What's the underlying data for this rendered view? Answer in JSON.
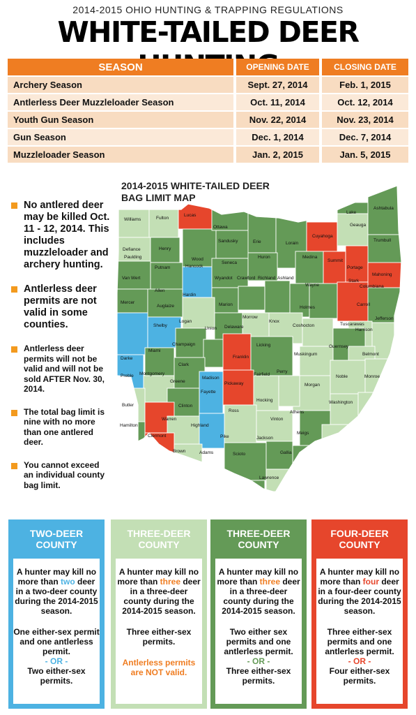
{
  "header": {
    "supertitle": "2014-2015 OHIO HUNTING & TRAPPING REGULATIONS",
    "title": "WHITE-TAILED DEER HUNTING"
  },
  "seasons_table": {
    "headers": [
      "SEASON",
      "OPENING DATE",
      "CLOSING DATE"
    ],
    "rows": [
      {
        "season": "Archery Season",
        "open": "Sept. 27, 2014",
        "close": "Feb. 1, 2015"
      },
      {
        "season": "Antlerless Deer Muzzleloader Season",
        "open": "Oct. 11, 2014",
        "close": "Oct. 12, 2014"
      },
      {
        "season": "Youth Gun Season",
        "open": "Nov. 22, 2014",
        "close": "Nov. 23, 2014"
      },
      {
        "season": "Gun Season",
        "open": "Dec. 1, 2014",
        "close": "Dec. 7, 2014"
      },
      {
        "season": "Muzzleloader Season",
        "open": "Jan. 2, 2015",
        "close": "Jan. 5, 2015"
      }
    ],
    "colors": {
      "header": "#ef7d22",
      "row_a": "#f8dcc1",
      "row_b": "#fbe9d8"
    }
  },
  "notes": [
    "No antlered deer may be killed Oct. 11 - 12, 2014. This includes muzzleloader and archery hunting.",
    "Antlerless deer permits are not valid in some counties.",
    "Antlerless deer permits will not be valid and will not be sold AFTER Nov. 30, 2014.",
    "The total bag limit is nine with no more than one antlered deer.",
    "You cannot exceed an individual county bag limit."
  ],
  "map": {
    "title_line1": "2014-2015  WHITE-TAILED DEER",
    "title_line2": "BAG LIMIT MAP",
    "colors": {
      "two": "#4db2e2",
      "three_light": "#c3dfb5",
      "three_dark": "#649a57",
      "four": "#e6462c"
    },
    "counties": {
      "williams": "Williams",
      "fulton": "Fulton",
      "lucas": "Lucas",
      "defiance": "Defiance",
      "henry": "Henry",
      "wood": "Wood",
      "ottawa": "Ottawa",
      "sandusky": "Sandusky",
      "erie": "Erie",
      "lorain": "Lorain",
      "cuyahoga": "Cuyahoga",
      "lake": "Lake",
      "geauga": "Geauga",
      "ashtabula": "Ashtabula",
      "trumbull": "Trumbull",
      "paulding": "Paulding",
      "putnam": "Putnam",
      "hancock": "Hancock",
      "seneca": "Seneca",
      "huron": "Huron",
      "medina": "Medina",
      "summit": "Summit",
      "portage": "Portage",
      "mahoning": "Mahoning",
      "van_wert": "Van Wert",
      "allen": "Allen",
      "wyandot": "Wyandot",
      "crawford": "Crawford",
      "richland": "Richland",
      "ashland": "Ashland",
      "wayne": "Wayne",
      "stark": "Stark",
      "columbiana": "Columbiana",
      "mercer": "Mercer",
      "auglaize": "Auglaize",
      "hardin": "Hardin",
      "marion": "Marion",
      "morrow": "Morrow",
      "knox": "Knox",
      "holmes": "Holmes",
      "carroll": "Carroll",
      "jefferson": "Jefferson",
      "tuscarawas": "Tuscarawas",
      "coshocton": "Coshocton",
      "harrison": "Harrison",
      "shelby": "Shelby",
      "logan": "Logan",
      "union": "Union",
      "delaware": "Delaware",
      "licking": "Licking",
      "darke": "Darke",
      "miami": "Miami",
      "champaign": "Champaign",
      "muskingum": "Muskingum",
      "guernsey": "Guernsey",
      "belmont": "Belmont",
      "clark": "Clark",
      "franklin": "Franklin",
      "fairfield": "Fairfield",
      "perry": "Perry",
      "noble": "Noble",
      "monroe": "Monroe",
      "preble": "Preble",
      "montgomery": "Montgomery",
      "greene": "Greene",
      "madison": "Madison",
      "pickaway": "Pickaway",
      "morgan": "Morgan",
      "washington": "Washington",
      "fayette": "Fayette",
      "hocking": "Hocking",
      "athens": "Athens",
      "butler": "Butler",
      "warren": "Warren",
      "clinton": "Clinton",
      "ross": "Ross",
      "vinton": "Vinton",
      "highland": "Highland",
      "meigs": "Meigs",
      "hamilton": "Hamilton",
      "clermont": "Clermont",
      "pike": "Pike",
      "jackson": "Jackson",
      "gallia": "Gallia",
      "brown": "Brown",
      "adams": "Adams",
      "scioto": "Scioto",
      "lawrence": "Lawrence"
    }
  },
  "legend": [
    {
      "title_line1": "TWO-DEER",
      "title_line2": "COUNTY",
      "color": "#4db2e2",
      "desc_pre": "A hunter may kill no more than ",
      "desc_hl": "two",
      "desc_post": " deer in a two-deer county during the 2014-2015 season.",
      "hl_color": "#4db2e2",
      "permits": "One either-sex permit and one antlerless permit.",
      "or": "- OR -",
      "alt_strong": "Two",
      "alt_rest": " either-sex permits."
    },
    {
      "title_line1": "THREE-DEER",
      "title_line2": "COUNTY",
      "color": "#c3dfb5",
      "desc_pre": "A hunter may kill no more than ",
      "desc_hl": "three",
      "desc_post": " deer in a three-deer county during the 2014-2015 season.",
      "hl_color": "#ef7d22",
      "permits": "Three either-sex permits.",
      "warning": "Antlerless permits are NOT valid."
    },
    {
      "title_line1": "THREE-DEER",
      "title_line2": "COUNTY",
      "color": "#649a57",
      "desc_pre": "A hunter may kill no more than ",
      "desc_hl": "three",
      "desc_post": " deer in a three-deer county during the 2014-2015 season.",
      "hl_color": "#ef7d22",
      "permits": "Two either sex permits and one antlerless permit.",
      "or": "- OR -",
      "alt_strong": "Three",
      "alt_rest": " either-sex permits."
    },
    {
      "title_line1": "FOUR-DEER",
      "title_line2": "COUNTY",
      "color": "#e6462c",
      "desc_pre": "A hunter may kill no more than ",
      "desc_hl": "four",
      "desc_post": " deer in a four-deer county during the 2014-2015 season.",
      "hl_color": "#e6462c",
      "permits": "Three either-sex permits and one antlerless permit.",
      "or": "- OR -",
      "alt_strong": "Four",
      "alt_rest": " either-sex permits."
    }
  ]
}
